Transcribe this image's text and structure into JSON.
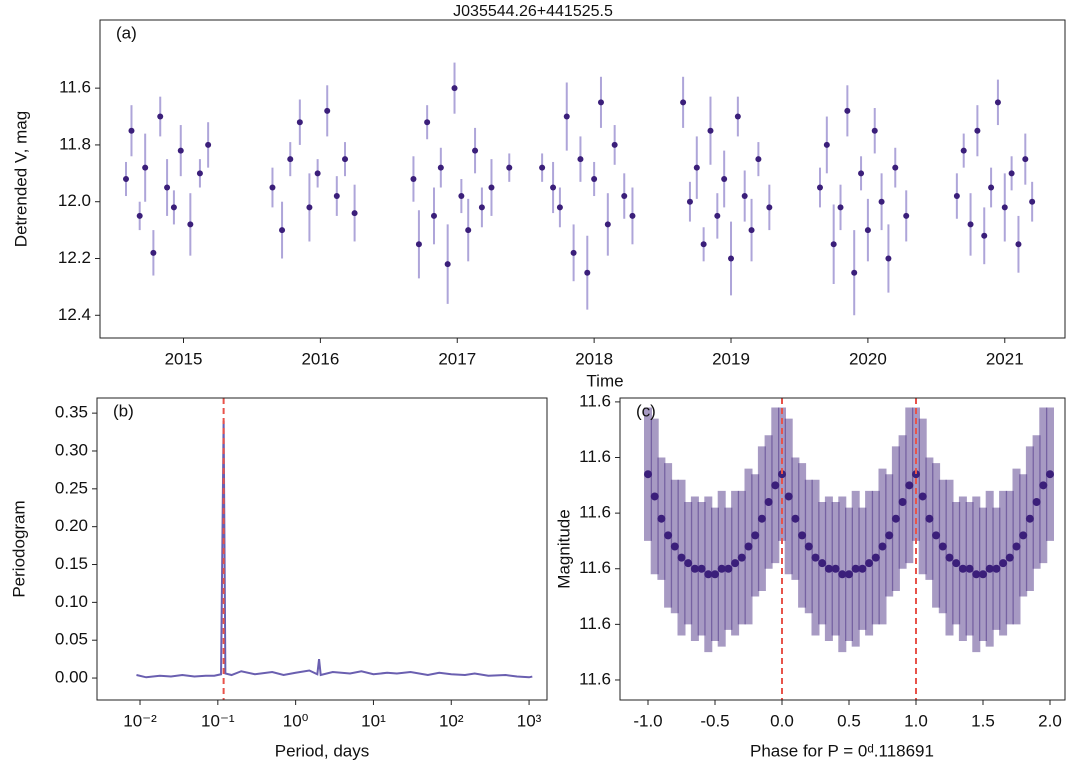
{
  "chart_data": [
    {
      "type": "errorbar",
      "title": "J035544.26+441525.5",
      "panel_label": "(a)",
      "x_label": "Time",
      "y_label": "Detrended V, mag",
      "color": "#3b1f7a",
      "error_color": "#9a8fd0",
      "xlim": [
        2014.39,
        2021.44
      ],
      "ylim": [
        12.48,
        11.36
      ],
      "xticks": [
        2015,
        2016,
        2017,
        2018,
        2019,
        2020,
        2021
      ],
      "yticks": [
        11.6,
        11.8,
        {
          "value": 12,
          "label": "12.0"
        },
        12.2,
        12.4
      ],
      "x": [
        2014.58,
        2014.62,
        2014.68,
        2014.72,
        2014.78,
        2014.83,
        2014.88,
        2014.93,
        2014.98,
        2015.05,
        2015.12,
        2015.18,
        2015.65,
        2015.72,
        2015.78,
        2015.85,
        2015.92,
        2015.98,
        2016.05,
        2016.12,
        2016.18,
        2016.25,
        2016.68,
        2016.72,
        2016.78,
        2016.83,
        2016.88,
        2016.93,
        2016.98,
        2017.03,
        2017.08,
        2017.13,
        2017.18,
        2017.25,
        2017.38,
        2017.62,
        2017.7,
        2017.75,
        2017.8,
        2017.85,
        2017.9,
        2017.95,
        2018.0,
        2018.05,
        2018.1,
        2018.15,
        2018.22,
        2018.28,
        2018.65,
        2018.7,
        2018.75,
        2018.8,
        2018.85,
        2018.9,
        2018.95,
        2019.0,
        2019.05,
        2019.1,
        2019.15,
        2019.2,
        2019.28,
        2019.65,
        2019.7,
        2019.75,
        2019.8,
        2019.85,
        2019.9,
        2019.95,
        2020.0,
        2020.05,
        2020.1,
        2020.15,
        2020.2,
        2020.28,
        2020.65,
        2020.7,
        2020.75,
        2020.8,
        2020.85,
        2020.9,
        2020.95,
        2021.0,
        2021.05,
        2021.1,
        2021.15,
        2021.2
      ],
      "values": [
        11.92,
        11.75,
        12.05,
        11.88,
        12.18,
        11.7,
        11.95,
        12.02,
        11.82,
        12.08,
        11.9,
        11.8,
        11.95,
        12.1,
        11.85,
        11.72,
        12.02,
        11.9,
        11.68,
        11.98,
        11.85,
        12.04,
        11.92,
        12.15,
        11.72,
        12.05,
        11.88,
        12.22,
        11.6,
        11.98,
        12.1,
        11.82,
        12.02,
        11.95,
        11.88,
        11.88,
        11.95,
        12.02,
        11.7,
        12.18,
        11.85,
        12.25,
        11.92,
        11.65,
        12.08,
        11.8,
        11.98,
        12.05,
        11.65,
        12.0,
        11.88,
        12.15,
        11.75,
        12.05,
        11.92,
        12.2,
        11.7,
        11.98,
        12.1,
        11.85,
        12.02,
        11.95,
        11.8,
        12.15,
        12.02,
        11.68,
        12.25,
        11.9,
        12.1,
        11.75,
        12.0,
        12.2,
        11.88,
        12.05,
        11.98,
        11.82,
        12.08,
        11.75,
        12.12,
        11.95,
        11.65,
        12.02,
        11.9,
        12.15,
        11.85,
        12.0
      ],
      "errors": [
        0.06,
        0.09,
        0.05,
        0.12,
        0.08,
        0.07,
        0.1,
        0.06,
        0.09,
        0.11,
        0.05,
        0.08,
        0.07,
        0.1,
        0.06,
        0.08,
        0.12,
        0.05,
        0.09,
        0.07,
        0.06,
        0.1,
        0.08,
        0.12,
        0.06,
        0.1,
        0.07,
        0.14,
        0.09,
        0.06,
        0.11,
        0.08,
        0.07,
        0.1,
        0.05,
        0.05,
        0.09,
        0.07,
        0.12,
        0.1,
        0.08,
        0.13,
        0.06,
        0.09,
        0.11,
        0.07,
        0.08,
        0.1,
        0.09,
        0.07,
        0.11,
        0.06,
        0.12,
        0.08,
        0.1,
        0.13,
        0.07,
        0.09,
        0.11,
        0.06,
        0.08,
        0.07,
        0.1,
        0.14,
        0.08,
        0.09,
        0.15,
        0.06,
        0.11,
        0.08,
        0.1,
        0.12,
        0.07,
        0.09,
        0.08,
        0.06,
        0.11,
        0.09,
        0.1,
        0.07,
        0.08,
        0.12,
        0.06,
        0.1,
        0.09,
        0.07
      ]
    },
    {
      "type": "line",
      "panel_label": "(b)",
      "x_label": "Period, days",
      "y_label": "Periodogram",
      "color": "#6a5fb0",
      "log_x": true,
      "period_line": 0.118691,
      "line_color": "#e8534a",
      "xlim": [
        0.0028,
        1700
      ],
      "ylim": [
        -0.029,
        0.37
      ],
      "xticks": [
        {
          "value": 0.01,
          "label": "10⁻²"
        },
        {
          "value": 0.1,
          "label": "10⁻¹"
        },
        {
          "value": 1,
          "label": "10⁰"
        },
        {
          "value": 10,
          "label": "10¹"
        },
        {
          "value": 100,
          "label": "10²"
        },
        {
          "value": 1000,
          "label": "10³"
        }
      ],
      "yticks": [
        {
          "value": 0,
          "label": "0.00"
        },
        {
          "value": 0.05,
          "label": "0.05"
        },
        {
          "value": 0.1,
          "label": "0.10"
        },
        {
          "value": 0.15,
          "label": "0.15"
        },
        {
          "value": 0.2,
          "label": "0.20"
        },
        {
          "value": 0.25,
          "label": "0.25"
        },
        {
          "value": 0.3,
          "label": "0.30"
        },
        {
          "value": 0.35,
          "label": "0.35"
        }
      ],
      "x": [
        0.009,
        0.012,
        0.018,
        0.025,
        0.035,
        0.05,
        0.07,
        0.09,
        0.11,
        0.1187,
        0.125,
        0.15,
        0.2,
        0.3,
        0.5,
        0.7,
        1,
        1.5,
        1.9,
        2,
        2.1,
        3,
        5,
        7,
        10,
        15,
        20,
        30,
        50,
        70,
        100,
        150,
        200,
        300,
        500,
        700,
        1000,
        1100
      ],
      "values": [
        0.004,
        0.001,
        0.003,
        0.002,
        0.004,
        0.002,
        0.003,
        0.003,
        0.005,
        0.34,
        0.006,
        0.004,
        0.009,
        0.005,
        0.008,
        0.004,
        0.007,
        0.01,
        0.005,
        0.025,
        0.004,
        0.008,
        0.006,
        0.009,
        0.005,
        0.007,
        0.006,
        0.008,
        0.004,
        0.007,
        0.005,
        0.004,
        0.006,
        0.003,
        0.004,
        0.002,
        0.001,
        0.002
      ]
    },
    {
      "type": "errorbar",
      "panel_label": "(c)",
      "x_label": "Phase for P = 0ᵈ.118691",
      "y_label": "Magnitude",
      "color": "#3b1f7a",
      "error_color": "#9a8fd0",
      "vlines": [
        0,
        1
      ],
      "line_color": "#e8534a",
      "dense": true,
      "xlim": [
        -1.209,
        2.112
      ],
      "ylim": [
        11.6336,
        11.5793
      ],
      "xticks": [
        {
          "value": -1,
          "label": "-1.0"
        },
        -0.5,
        {
          "value": 0,
          "label": "0.0"
        },
        0.5,
        {
          "value": 1,
          "label": "1.0"
        },
        1.5,
        {
          "value": 2,
          "label": "2.0"
        }
      ],
      "yticks": [
        {
          "value": 11.58,
          "label": "11.6"
        },
        {
          "value": 11.59,
          "label": "11.6"
        },
        {
          "value": 11.6,
          "label": "11.6"
        },
        {
          "value": 11.61,
          "label": "11.6"
        },
        {
          "value": 11.62,
          "label": "11.6"
        },
        {
          "value": 11.63,
          "label": "11.6"
        }
      ],
      "x": [
        -1,
        -0.95,
        -0.9,
        -0.85,
        -0.8,
        -0.75,
        -0.7,
        -0.65,
        -0.6,
        -0.55,
        -0.5,
        -0.45,
        -0.4,
        -0.35,
        -0.3,
        -0.25,
        -0.2,
        -0.15,
        -0.1,
        -0.05,
        0,
        0.05,
        0.1,
        0.15,
        0.2,
        0.25,
        0.3,
        0.35,
        0.4,
        0.45,
        0.5,
        0.55,
        0.6,
        0.65,
        0.7,
        0.75,
        0.8,
        0.85,
        0.9,
        0.95,
        1,
        1.05,
        1.1,
        1.15,
        1.2,
        1.25,
        1.3,
        1.35,
        1.4,
        1.45,
        1.5,
        1.55,
        1.6,
        1.65,
        1.7,
        1.75,
        1.8,
        1.85,
        1.9,
        1.95,
        2
      ],
      "values": [
        11.593,
        11.597,
        11.601,
        11.604,
        11.606,
        11.608,
        11.609,
        11.61,
        11.61,
        11.611,
        11.611,
        11.61,
        11.61,
        11.609,
        11.608,
        11.606,
        11.604,
        11.601,
        11.598,
        11.595,
        11.593,
        11.597,
        11.601,
        11.604,
        11.606,
        11.608,
        11.609,
        11.61,
        11.61,
        11.611,
        11.611,
        11.61,
        11.61,
        11.609,
        11.608,
        11.606,
        11.604,
        11.601,
        11.598,
        11.595,
        11.593,
        11.597,
        11.601,
        11.604,
        11.606,
        11.608,
        11.609,
        11.61,
        11.61,
        11.611,
        11.611,
        11.61,
        11.61,
        11.609,
        11.608,
        11.606,
        11.604,
        11.601,
        11.598,
        11.595,
        11.593
      ],
      "errors": [
        0.012,
        0.014,
        0.011,
        0.013,
        0.012,
        0.014,
        0.011,
        0.013,
        0.012,
        0.014,
        0.012,
        0.014,
        0.011,
        0.013,
        0.012,
        0.014,
        0.011,
        0.013,
        0.012,
        0.014,
        0.012,
        0.014,
        0.011,
        0.013,
        0.012,
        0.014,
        0.011,
        0.013,
        0.012,
        0.014,
        0.012,
        0.014,
        0.011,
        0.013,
        0.012,
        0.014,
        0.011,
        0.013,
        0.012,
        0.014,
        0.012,
        0.014,
        0.011,
        0.013,
        0.012,
        0.014,
        0.011,
        0.013,
        0.012,
        0.014,
        0.012,
        0.014,
        0.011,
        0.013,
        0.012,
        0.014,
        0.011,
        0.013,
        0.012,
        0.014,
        0.012
      ]
    }
  ]
}
